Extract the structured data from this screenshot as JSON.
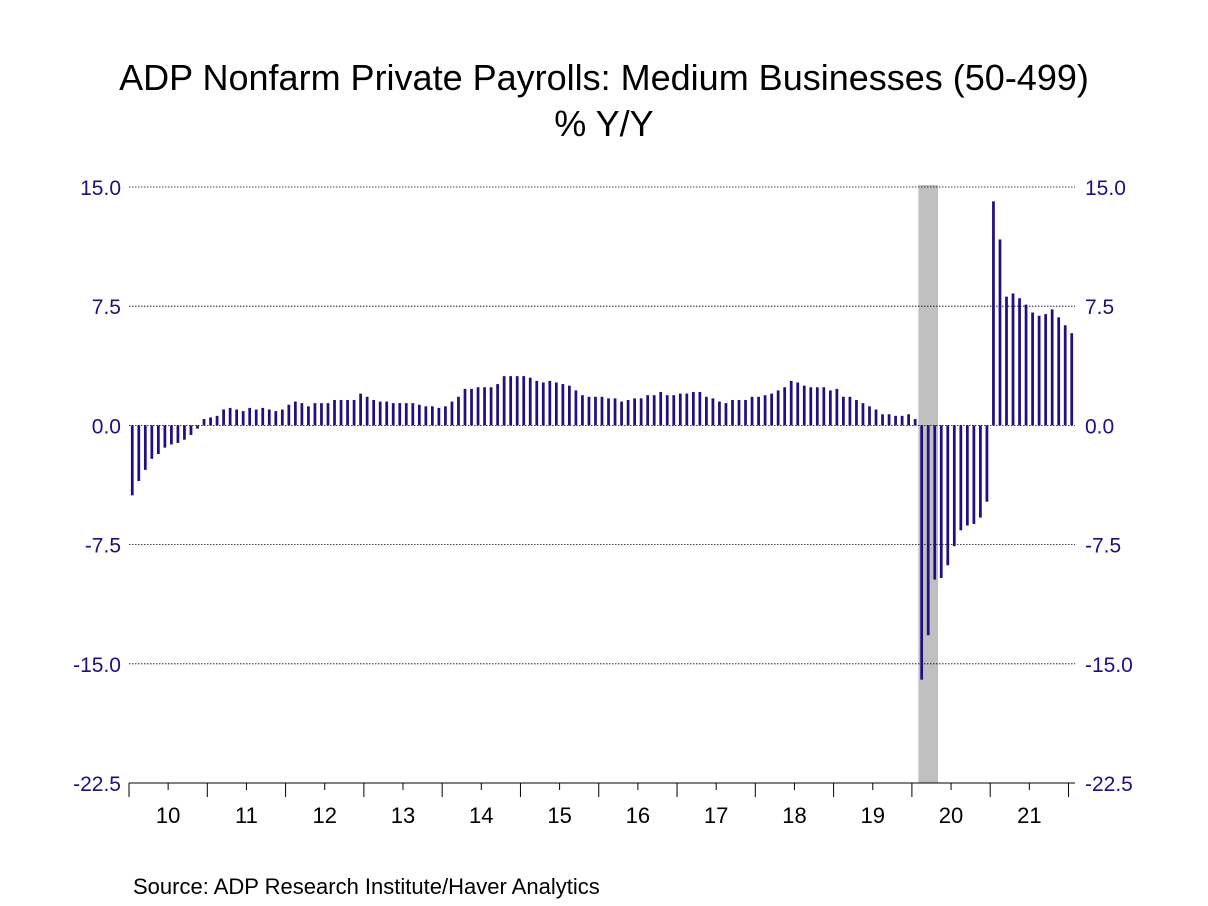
{
  "chart_data": {
    "type": "bar",
    "title": "ADP Nonfarm Private Payrolls: Medium Businesses (50-499)",
    "subtitle": "% Y/Y",
    "source": "Source:  ADP Research Institute/Haver Analytics",
    "ylim": [
      -22.5,
      15.0
    ],
    "yticks": [
      "15.0",
      "7.5",
      "0.0",
      "-7.5",
      "-15.0",
      "-22.5"
    ],
    "x_tick_labels": [
      "10",
      "11",
      "12",
      "13",
      "14",
      "15",
      "16",
      "17",
      "18",
      "19",
      "20",
      "21"
    ],
    "start": "2010-01",
    "frequency": "monthly",
    "recession_shading": {
      "start": "2020-02",
      "end": "2020-04"
    },
    "colors": {
      "bars": "#1f0f80",
      "axis_text": "#1f0f80",
      "recession": "#c0c0c0",
      "gridline": "#000000"
    },
    "series": [
      {
        "values": [
          -4.4,
          -3.5,
          -2.8,
          -2.1,
          -1.8,
          -1.4,
          -1.2,
          -1.1,
          -0.9,
          -0.6,
          -0.2,
          0.4,
          0.5,
          0.6,
          1.0,
          1.1,
          1.0,
          0.9,
          1.1,
          1.0,
          1.1,
          1.0,
          0.9,
          1.0,
          1.3,
          1.5,
          1.4,
          1.2,
          1.4,
          1.4,
          1.4,
          1.6,
          1.6,
          1.6,
          1.6,
          2.0,
          1.8,
          1.6,
          1.5,
          1.5,
          1.4,
          1.4,
          1.4,
          1.4,
          1.3,
          1.2,
          1.2,
          1.1,
          1.2,
          1.5,
          1.8,
          2.3,
          2.3,
          2.4,
          2.4,
          2.4,
          2.6,
          3.1,
          3.1,
          3.1,
          3.1,
          3.0,
          2.8,
          2.7,
          2.8,
          2.7,
          2.6,
          2.5,
          2.2,
          1.9,
          1.8,
          1.8,
          1.8,
          1.7,
          1.7,
          1.5,
          1.6,
          1.7,
          1.7,
          1.9,
          1.9,
          2.1,
          1.9,
          1.9,
          2.0,
          2.0,
          2.1,
          2.1,
          1.8,
          1.7,
          1.5,
          1.4,
          1.6,
          1.6,
          1.6,
          1.8,
          1.8,
          1.9,
          2.0,
          2.2,
          2.4,
          2.8,
          2.7,
          2.5,
          2.4,
          2.4,
          2.4,
          2.2,
          2.3,
          1.8,
          1.8,
          1.6,
          1.4,
          1.2,
          1.0,
          0.7,
          0.7,
          0.6,
          0.6,
          0.7,
          0.4,
          -16.0,
          -13.2,
          -9.7,
          -9.6,
          -8.8,
          -7.6,
          -6.6,
          -6.3,
          -6.2,
          -5.8,
          -4.8,
          14.1,
          11.7,
          8.1,
          8.3,
          8.0,
          7.6,
          7.1,
          6.9,
          7.0,
          7.3,
          6.8,
          6.3,
          5.8
        ]
      }
    ]
  }
}
